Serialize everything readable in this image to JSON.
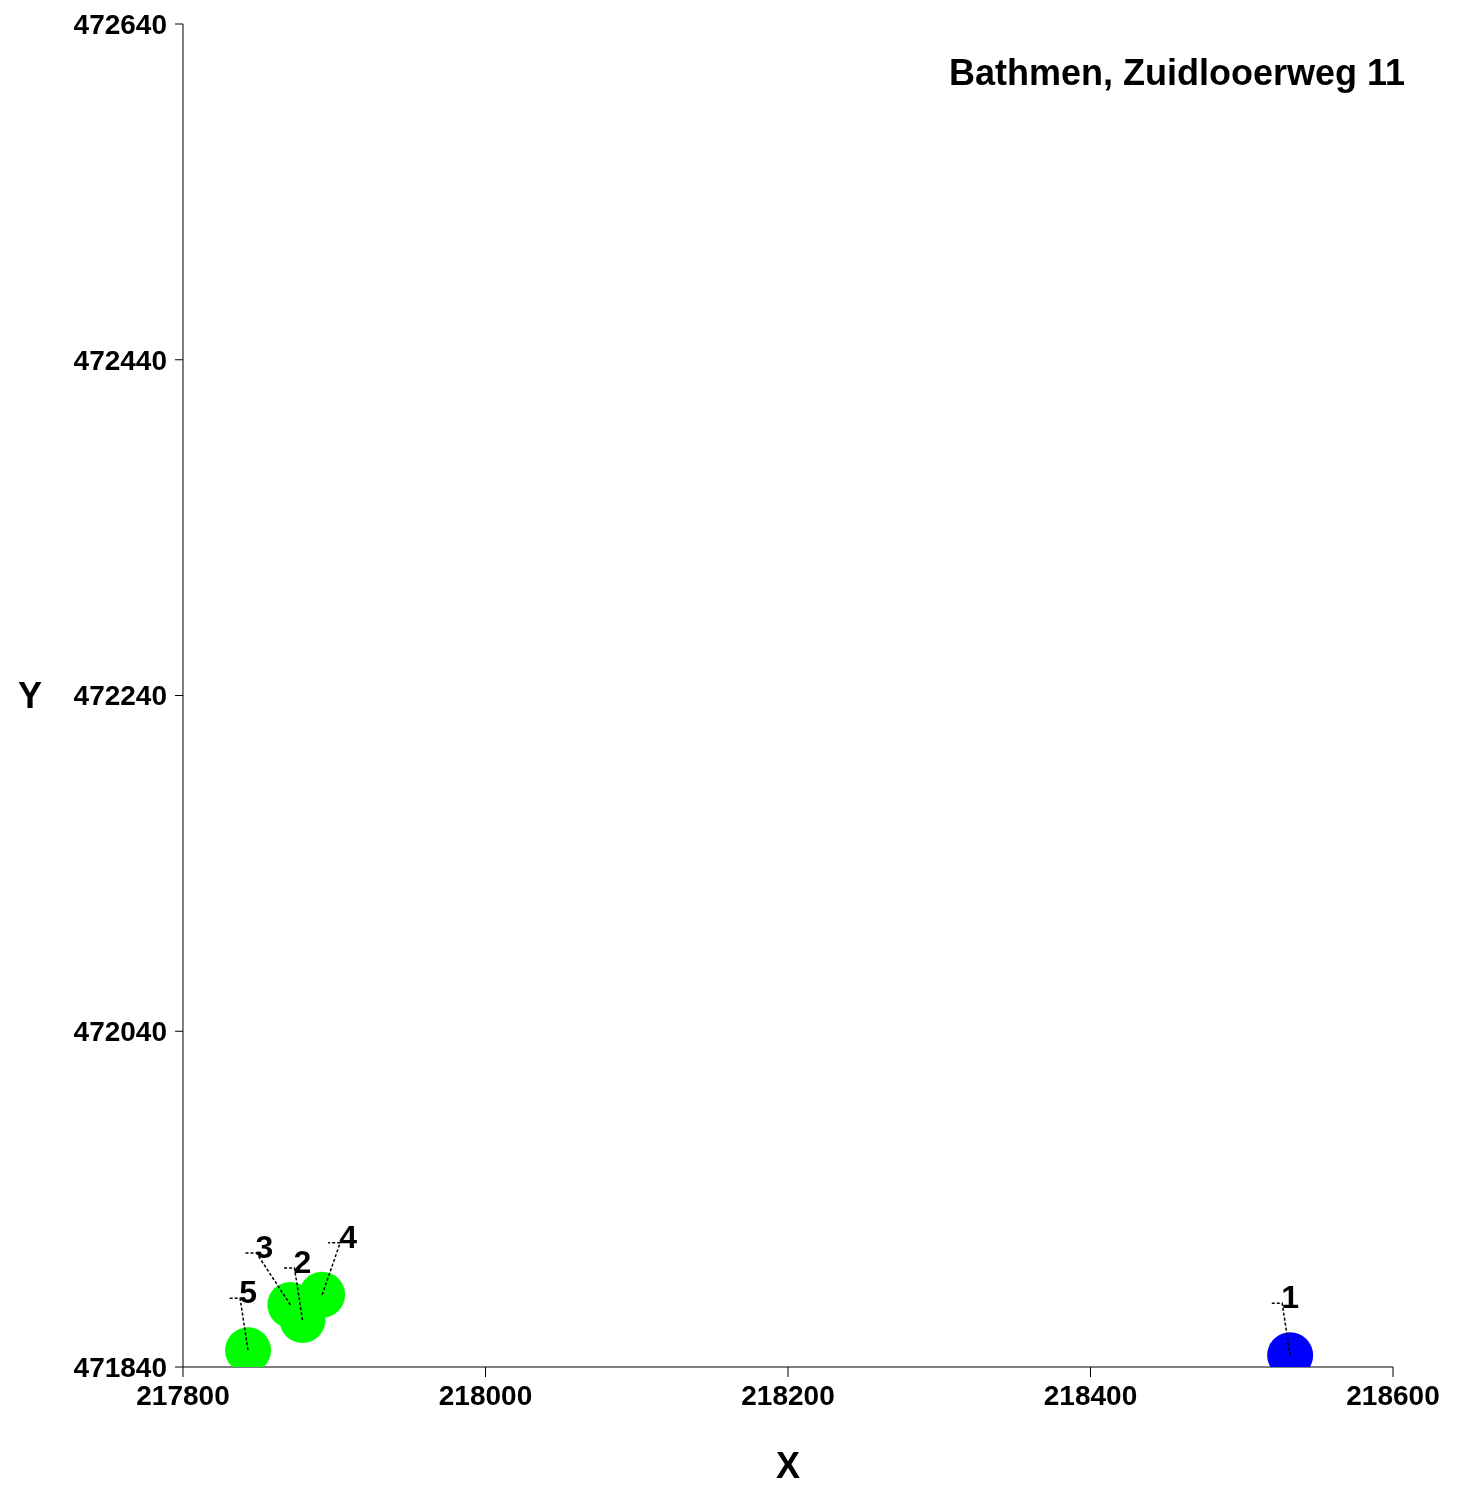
{
  "chart_data": {
    "type": "scatter",
    "title": "Bathmen, Zuidlooerweg 11",
    "xlabel": "X",
    "ylabel": "Y",
    "x": [
      218532,
      217879,
      217871,
      217892,
      217843
    ],
    "series": [
      {
        "values": [
          471847,
          471868,
          471877,
          471883,
          471850
        ],
        "colors": [
          "#0000ff",
          "#00ff00",
          "#00ff00",
          "#00ff00",
          "#00ff00"
        ]
      }
    ],
    "xlim": [
      217800,
      218600
    ],
    "xticks": [
      217800,
      218000,
      218200,
      218400,
      218600
    ],
    "ylim": [
      471840,
      472640
    ],
    "yticks": [
      471840,
      472040,
      472240,
      472440,
      472640
    ],
    "grid": false,
    "legend": false,
    "marker": "circle",
    "annotations": [
      {
        "text": "1",
        "x": 218532,
        "y": 471847
      },
      {
        "text": "2",
        "x": 217879,
        "y": 471868
      },
      {
        "text": "3",
        "x": 217871,
        "y": 471877
      },
      {
        "text": "4",
        "x": 217892,
        "y": 471883
      },
      {
        "text": "5",
        "x": 217843,
        "y": 471850
      }
    ]
  }
}
